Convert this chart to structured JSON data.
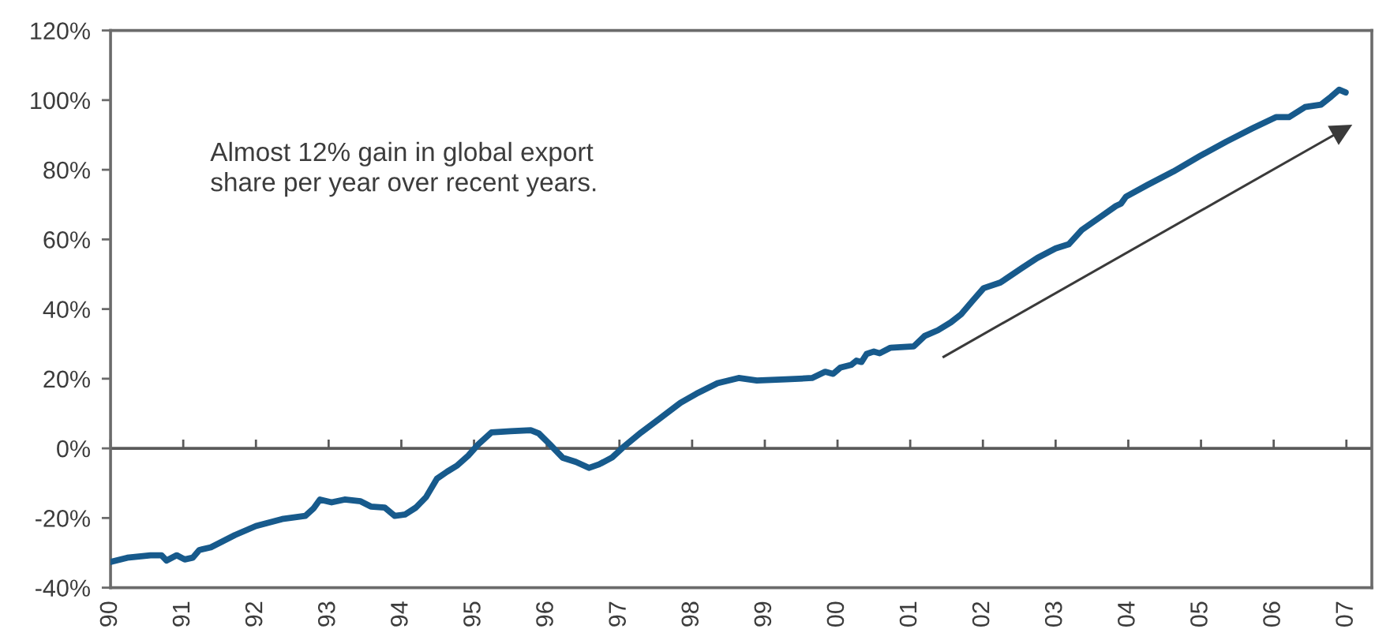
{
  "chart_data": {
    "type": "line",
    "annotations": [
      "Almost 12% gain in global export\nshare per year over recent years."
    ],
    "series": [
      {
        "color": "#175a8c",
        "x": [
          1990.0,
          1990.23,
          1990.55,
          1990.7,
          1990.77,
          1990.91,
          1991.02,
          1991.13,
          1991.22,
          1991.38,
          1991.71,
          1992.0,
          1992.36,
          1992.68,
          1992.79,
          1992.88,
          1993.04,
          1993.22,
          1993.44,
          1993.58,
          1993.77,
          1993.91,
          1994.05,
          1994.2,
          1994.34,
          1994.49,
          1994.63,
          1994.77,
          1994.92,
          1995.06,
          1995.24,
          1995.5,
          1995.78,
          1995.89,
          1996.04,
          1996.22,
          1996.4,
          1996.58,
          1996.72,
          1996.9,
          1997.05,
          1997.3,
          1997.55,
          1997.84,
          1998.06,
          1998.35,
          1998.64,
          1998.89,
          1999.29,
          1999.65,
          1999.83,
          1999.94,
          2000.04,
          2000.19,
          2000.26,
          2000.33,
          2000.4,
          2000.5,
          2000.58,
          2000.73,
          2001.05,
          2001.2,
          2001.38,
          2001.56,
          2001.7,
          2001.85,
          2002.01,
          2002.24,
          2002.53,
          2002.75,
          2003.0,
          2003.18,
          2003.36,
          2003.62,
          2003.83,
          2003.9,
          2003.97,
          2004.26,
          2004.62,
          2004.99,
          2005.35,
          2005.71,
          2006.03,
          2006.21,
          2006.43,
          2006.65,
          2006.79,
          2006.9,
          2006.99
        ],
        "values": [
          -32.6,
          -31.4,
          -30.7,
          -30.7,
          -32.2,
          -30.7,
          -31.9,
          -31.4,
          -29.2,
          -28.4,
          -24.9,
          -22.3,
          -20.3,
          -19.4,
          -17.3,
          -14.7,
          -15.5,
          -14.7,
          -15.2,
          -16.7,
          -17.0,
          -19.4,
          -19.0,
          -17.0,
          -14.0,
          -8.7,
          -6.7,
          -4.9,
          -2.1,
          1.2,
          4.6,
          4.9,
          5.2,
          4.3,
          1.2,
          -2.7,
          -3.9,
          -5.6,
          -4.6,
          -2.6,
          0.3,
          4.6,
          8.5,
          13.1,
          15.7,
          18.7,
          20.2,
          19.5,
          19.8,
          20.2,
          22.0,
          21.4,
          23.2,
          24.0,
          25.2,
          24.8,
          27.1,
          27.8,
          27.3,
          28.9,
          29.3,
          32.3,
          33.9,
          36.2,
          38.5,
          42.2,
          46.0,
          47.6,
          51.7,
          54.7,
          57.4,
          58.6,
          62.7,
          66.5,
          69.6,
          70.3,
          72.3,
          75.6,
          79.5,
          84.0,
          88.1,
          91.9,
          95.1,
          95.1,
          98.0,
          98.7,
          101.0,
          103.0,
          102.2
        ]
      },
      {
        "color": "#3a3a3a",
        "marker": "triangle",
        "x": [
          2001.46,
          2006.95
        ],
        "values": [
          26.3,
          91.4
        ]
      }
    ],
    "xlim": [
      1990,
      2007.35
    ],
    "xticks": [
      {
        "value": 1990,
        "label": "90"
      },
      {
        "value": 1991,
        "label": "91"
      },
      {
        "value": 1992,
        "label": "92"
      },
      {
        "value": 1993,
        "label": "93"
      },
      {
        "value": 1994,
        "label": "94"
      },
      {
        "value": 1995,
        "label": "95"
      },
      {
        "value": 1996,
        "label": "96"
      },
      {
        "value": 1997,
        "label": "97"
      },
      {
        "value": 1998,
        "label": "98"
      },
      {
        "value": 1999,
        "label": "99"
      },
      {
        "value": 2000,
        "label": "00"
      },
      {
        "value": 2001,
        "label": "01"
      },
      {
        "value": 2002,
        "label": "02"
      },
      {
        "value": 2003,
        "label": "03"
      },
      {
        "value": 2004,
        "label": "04"
      },
      {
        "value": 2005,
        "label": "05"
      },
      {
        "value": 2006,
        "label": "06"
      },
      {
        "value": 2007,
        "label": "07"
      }
    ],
    "ylim": [
      -40,
      120
    ],
    "yticks": [
      {
        "value": -40,
        "label": "-40%"
      },
      {
        "value": -20,
        "label": "-20%"
      },
      {
        "value": 0,
        "label": "0%"
      },
      {
        "value": 20,
        "label": "20%"
      },
      {
        "value": 40,
        "label": "40%"
      },
      {
        "value": 60,
        "label": "60%"
      },
      {
        "value": 80,
        "label": "80%"
      },
      {
        "value": 100,
        "label": "100%"
      },
      {
        "value": 120,
        "label": "120%"
      }
    ],
    "ref_lines": [
      {
        "axis": "y",
        "value": 0,
        "color": "#5a5a5a"
      }
    ],
    "grid": false,
    "legend": false
  }
}
